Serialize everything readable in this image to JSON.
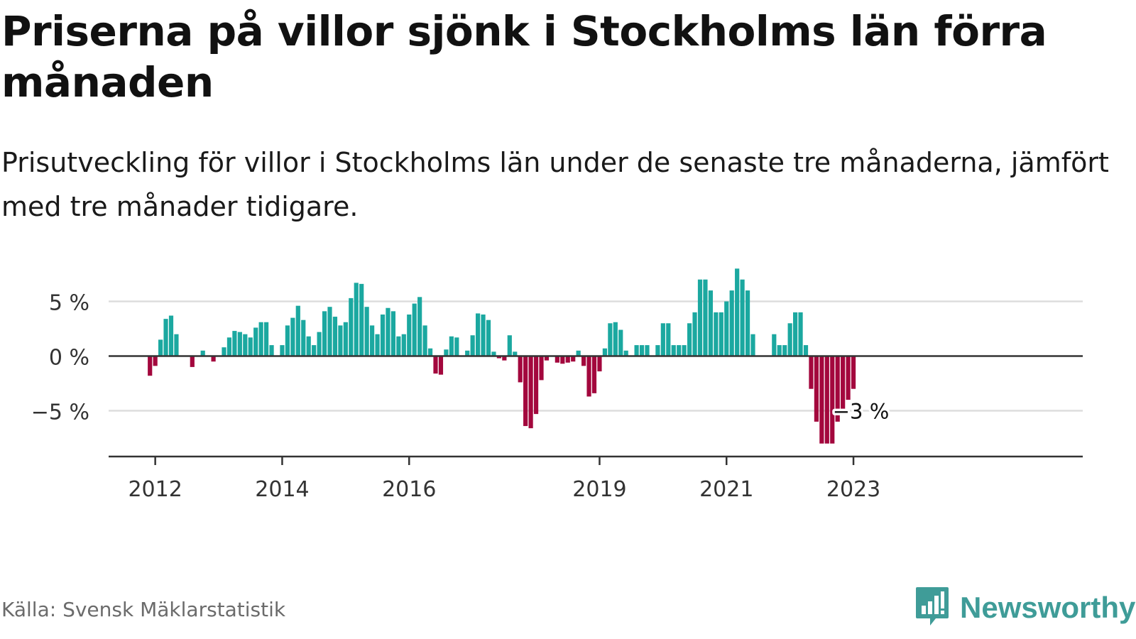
{
  "title": "Priserna på villor sjönk i Stockholms län förra månaden",
  "subtitle": "Prisutveckling för villor i Stockholms län under de senaste tre månaderna, jämfört med tre månader tidigare.",
  "source": "Källa: Svensk Mäklarstatistik",
  "brand": "Newsworthy",
  "colors": {
    "positive": "#1ba8a0",
    "negative": "#a3073d",
    "axis": "#333333",
    "grid": "#dddddd",
    "brand": "#3f9c98"
  },
  "chart_data": {
    "type": "bar",
    "ylim": [
      -9,
      9
    ],
    "yticks": [
      {
        "value": 5,
        "label": "5 %"
      },
      {
        "value": 0,
        "label": "0 %"
      },
      {
        "value": -5,
        "label": "−5 %"
      }
    ],
    "xticks": [
      {
        "index": 7,
        "label": "2012"
      },
      {
        "index": 31,
        "label": "2014"
      },
      {
        "index": 55,
        "label": "2016"
      },
      {
        "index": 91,
        "label": "2019"
      },
      {
        "index": 115,
        "label": "2021"
      },
      {
        "index": 139,
        "label": "2023"
      }
    ],
    "annotation": {
      "index": 140,
      "label": "−3 %"
    },
    "values": [
      null,
      null,
      null,
      null,
      null,
      null,
      -1.8,
      -0.9,
      1.5,
      3.4,
      3.7,
      2.0,
      null,
      null,
      -1.0,
      null,
      0.5,
      null,
      -0.5,
      null,
      0.8,
      1.7,
      2.3,
      2.2,
      2.0,
      1.7,
      2.6,
      3.1,
      3.1,
      1.0,
      null,
      1.0,
      2.8,
      3.5,
      4.6,
      3.3,
      1.8,
      1.0,
      2.2,
      4.1,
      4.5,
      3.6,
      2.8,
      3.1,
      5.3,
      6.7,
      6.6,
      4.5,
      2.8,
      2.0,
      3.8,
      4.4,
      4.1,
      1.8,
      2.0,
      3.8,
      4.8,
      5.4,
      2.8,
      0.7,
      -1.6,
      -1.7,
      0.6,
      1.8,
      1.7,
      null,
      0.5,
      1.9,
      3.9,
      3.8,
      3.3,
      0.4,
      -0.2,
      -0.4,
      1.9,
      0.4,
      -2.4,
      -6.4,
      -6.6,
      -5.3,
      -2.2,
      -0.4,
      null,
      -0.6,
      -0.7,
      -0.6,
      -0.5,
      0.5,
      -0.9,
      -3.7,
      -3.4,
      -1.4,
      0.7,
      3.0,
      3.1,
      2.4,
      0.5,
      null,
      1.0,
      1.0,
      1.0,
      null,
      1.0,
      3.0,
      3.0,
      1.0,
      1.0,
      1.0,
      3.0,
      4.0,
      7.0,
      7.0,
      6.0,
      4.0,
      4.0,
      5.0,
      6.0,
      8.0,
      7.0,
      6.0,
      2.0,
      null,
      null,
      null,
      2.0,
      1.0,
      1.0,
      3.0,
      4.0,
      4.0,
      1.0,
      -3.0,
      -6.0,
      -8.0,
      -8.0,
      -8.0,
      -6.0,
      -5.0,
      -4.0,
      -3.0
    ]
  }
}
